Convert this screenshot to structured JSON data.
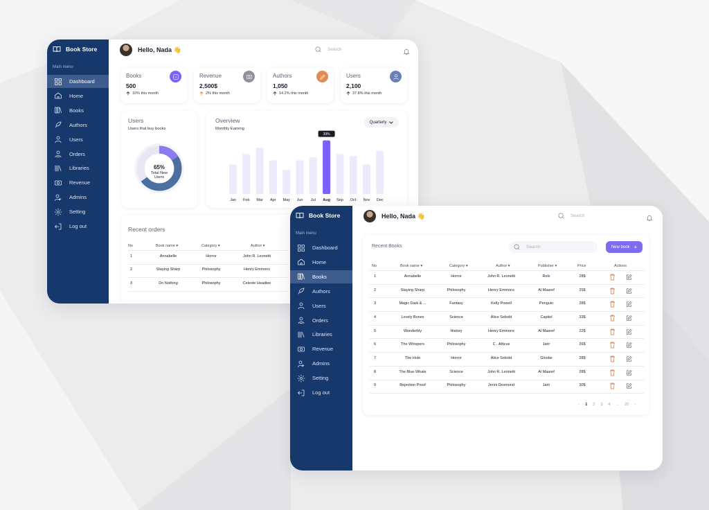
{
  "app": {
    "brand": "Book Store",
    "menu_label": "Main menu",
    "greeting": "Hello, Nada 👋",
    "search_placeholder": "Search"
  },
  "nav": [
    {
      "label": "Dashboard",
      "icon": "grid-icon"
    },
    {
      "label": "Home",
      "icon": "home-icon"
    },
    {
      "label": "Books",
      "icon": "books-icon"
    },
    {
      "label": "Authors",
      "icon": "feather-pen-icon"
    },
    {
      "label": "Users",
      "icon": "user-icon"
    },
    {
      "label": "Orders",
      "icon": "orders-icon"
    },
    {
      "label": "Libraries",
      "icon": "library-icon"
    },
    {
      "label": "Revenue",
      "icon": "revenue-icon"
    },
    {
      "label": "Admins",
      "icon": "admin-icon"
    },
    {
      "label": "Setting",
      "icon": "gear-icon"
    },
    {
      "label": "Log out",
      "icon": "logout-icon"
    }
  ],
  "dashboard": {
    "active_nav": "Dashboard",
    "stats": [
      {
        "label": "Books",
        "value": "500",
        "change": "10% this month",
        "icon": "new-books-icon",
        "color": "#7b61ff",
        "arrow": "#2f3545"
      },
      {
        "label": "Revenue",
        "value": "2,500$",
        "change": "2% this month",
        "icon": "money-icon",
        "color": "#8e9197",
        "arrow": "#e07a2f"
      },
      {
        "label": "Authors",
        "value": "1,050",
        "change": "14.2% this month",
        "icon": "pen-icon",
        "color": "#e08a55",
        "arrow": "#2f3545"
      },
      {
        "label": "Users",
        "value": "2,100",
        "change": "37.8% this month",
        "icon": "user-icon",
        "color": "#6a7fb5",
        "arrow": "#2f3545"
      }
    ],
    "users_card": {
      "title": "Users",
      "subtitle": "Users that buy books",
      "percent": "65%",
      "caption_1": "Total New",
      "caption_2": "Users"
    },
    "overview": {
      "title": "Overview",
      "subtitle": "Monthly Earning",
      "dropdown": "Quarterly",
      "tooltip": "39%"
    },
    "orders": {
      "title": "Recent orders",
      "headers": [
        "No",
        "Book name",
        "Category",
        "Author"
      ],
      "rows": [
        [
          "1",
          "Annabelle",
          "Horror",
          "John R. Leonetti"
        ],
        [
          "2",
          "Staying Sharp",
          "Philosophy",
          "Henry Emmons"
        ],
        [
          "3",
          "Do Nothing",
          "Philosophy",
          "Celeste Headlee"
        ]
      ]
    }
  },
  "chart_data": {
    "type": "bar",
    "title": "Overview",
    "categories": [
      "Jan",
      "Feb",
      "Mar",
      "Apr",
      "May",
      "Jun",
      "Jul",
      "Aug",
      "Sep",
      "Oct",
      "Nov",
      "Dec"
    ],
    "values": [
      28,
      38,
      44,
      32,
      23,
      32,
      35,
      51,
      38,
      36,
      28,
      41
    ],
    "highlight": "Aug",
    "highlight_label": "39%",
    "colors": {
      "bar": "#ecebfb",
      "highlight": "#7b61ff"
    }
  },
  "books_page": {
    "active_nav": "Books",
    "title": "Recent Books",
    "search_placeholder": "Search",
    "new_button": "New book",
    "headers": [
      "No",
      "Book name",
      "Category",
      "Author",
      "Publisher",
      "Price",
      "Actions"
    ],
    "rows": [
      [
        "1",
        "Annabelle",
        "Horror",
        "John R. Leonetti",
        "Relx",
        "28$"
      ],
      [
        "2",
        "Staying Sharp",
        "Philosophy",
        "Henry Emmons",
        "Al Maaref",
        "25$"
      ],
      [
        "3",
        "Magic Dark & ...",
        "Fantasy",
        "Kelly Powell",
        "Penguin",
        "28$"
      ],
      [
        "4",
        "Lovely Bones",
        "Science",
        "Alice Sebold",
        "Capitol",
        "33$"
      ],
      [
        "5",
        "Wonderbly",
        "History",
        "Henry Emmons",
        "Al Maaref",
        "22$"
      ],
      [
        "6",
        "The Whispers",
        "Philosophy",
        "C . Atticus",
        "Jarir",
        "26$"
      ],
      [
        "7",
        "The Hole",
        "Horror",
        "Alice Sebold",
        "Glosbe",
        "28$"
      ],
      [
        "8",
        "The Blue Whale",
        "Science",
        "John R. Leonetti",
        "Al Maaref",
        "28$"
      ],
      [
        "9",
        "Rejection Proof",
        "Philosophy",
        "Jenni Desmond",
        "Jarir",
        "30$"
      ]
    ],
    "pagination": [
      "‹",
      "1",
      "2",
      "3",
      "4",
      "...",
      "20",
      "›"
    ],
    "current_page": "1"
  }
}
